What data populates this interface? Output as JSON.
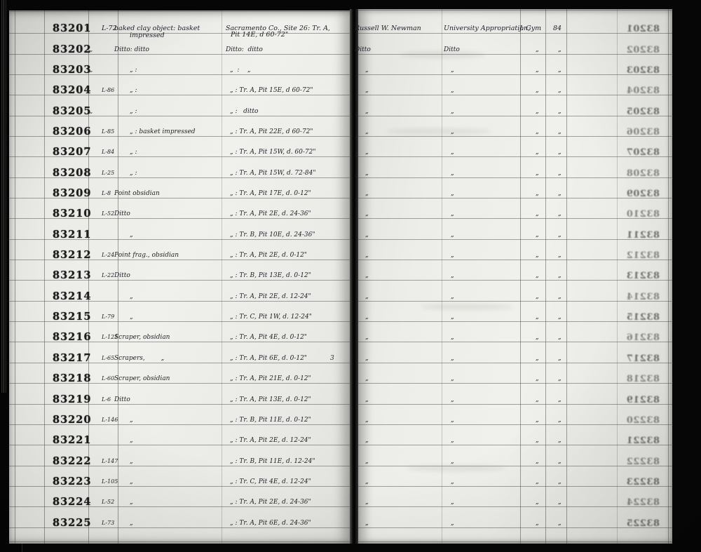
{
  "ledger": {
    "ditto_mark": "„",
    "rows": [
      {
        "no": "83201",
        "field_no": "L-72",
        "object": "baked clay object: basket",
        "object2": "impressed",
        "locality": "Sacramento Co., Site 26: Tr. A,",
        "locality2": "Pit 14E, d 60-72\"",
        "c1": "Russell W. Newman",
        "c2": "University Appropriation,",
        "c3": "J. Gym",
        "c4": "84"
      },
      {
        "no": "83202",
        "field_no": "„",
        "object": "Ditto: ditto",
        "locality": "Ditto:  ditto",
        "c1": "Ditto",
        "c2": "Ditto",
        "c3": "„",
        "c4": "„"
      },
      {
        "no": "83203",
        "field_no": "„",
        "object": "„ :",
        "locality": "„  :    „",
        "c1": "„",
        "c2": "„",
        "c3": "„",
        "c4": "„"
      },
      {
        "no": "83204",
        "field_no": "L-86",
        "object": "„ :",
        "locality": "„ : Tr. A, Pit 15E, d 60-72\"",
        "c1": "„",
        "c2": "„",
        "c3": "„",
        "c4": "„"
      },
      {
        "no": "83205",
        "field_no": "„",
        "object": "„ :",
        "locality": "„ :   ditto",
        "c1": "„",
        "c2": "„",
        "c3": "„",
        "c4": "„"
      },
      {
        "no": "83206",
        "field_no": "L-85",
        "object": "„ : basket impressed",
        "locality": "„ : Tr. A, Pit 22E, d 60-72\"",
        "c1": "„",
        "c2": "„",
        "c3": "„",
        "c4": "„"
      },
      {
        "no": "83207",
        "field_no": "L-84",
        "object": "„ :",
        "locality": "„ : Tr. A, Pit 15W, d. 60-72\"",
        "c1": "„",
        "c2": "„",
        "c3": "„",
        "c4": "„"
      },
      {
        "no": "83208",
        "field_no": "L-25",
        "object": "„ :",
        "locality": "„ : Tr. A, Pit 15W, d. 72-84\"",
        "c1": "„",
        "c2": "„",
        "c3": "„",
        "c4": "„"
      },
      {
        "no": "83209",
        "field_no": "L-8",
        "object": "Point obsidian",
        "locality": "„ : Tr. A, Pit 17E, d. 0-12\"",
        "c1": "„",
        "c2": "„",
        "c3": "„",
        "c4": "„"
      },
      {
        "no": "83210",
        "field_no": "L-52",
        "object": "Ditto",
        "locality": "„ : Tr. A, Pit 2E, d. 24-36\"",
        "c1": "„",
        "c2": "„",
        "c3": "„",
        "c4": "„"
      },
      {
        "no": "83211",
        "field_no": "",
        "object": "„",
        "locality": "„ : Tr. B, Pit 10E, d. 24-36\"",
        "c1": "„",
        "c2": "„",
        "c3": "„",
        "c4": "„"
      },
      {
        "no": "83212",
        "field_no": "L-24",
        "object": "Point frag., obsidian",
        "locality": "„ : Tr. A, Pit 2E, d. 0-12\"",
        "c1": "„",
        "c2": "„",
        "c3": "„",
        "c4": "„"
      },
      {
        "no": "83213",
        "field_no": "L-22",
        "object": "Ditto",
        "locality": "„ : Tr. B, Pit 13E, d. 0-12\"",
        "c1": "„",
        "c2": "„",
        "c3": "„",
        "c4": "„"
      },
      {
        "no": "83214",
        "field_no": "",
        "object": "„",
        "locality": "„ : Tr. A, Pit 2E, d. 12-24\"",
        "c1": "„",
        "c2": "„",
        "c3": "„",
        "c4": "„"
      },
      {
        "no": "83215",
        "field_no": "L-79",
        "object": "„",
        "locality": "„ : Tr. C, Pit 1W, d. 12-24\"",
        "c1": "„",
        "c2": "„",
        "c3": "„",
        "c4": "„"
      },
      {
        "no": "83216",
        "field_no": "L-121",
        "object": "Scraper, obsidian",
        "locality": "„ : Tr. A, Pit 4E, d. 0-12\"",
        "c1": "„",
        "c2": "„",
        "c3": "„",
        "c4": "„"
      },
      {
        "no": "83217",
        "field_no": "L-65",
        "object": "Scrapers,        „",
        "locality": "„ : Tr. A, Pit 6E, d. 0-12\"",
        "count": "3",
        "c1": "„",
        "c2": "„",
        "c3": "„",
        "c4": "„"
      },
      {
        "no": "83218",
        "field_no": "L-60",
        "object": "Scraper, obsidian",
        "locality": "„ : Tr. A, Pit 21E, d. 0-12\"",
        "c1": "„",
        "c2": "„",
        "c3": "„",
        "c4": "„"
      },
      {
        "no": "83219",
        "field_no": "L-6",
        "object": "Ditto",
        "locality": "„ : Tr. A, Pit 13E, d. 0-12\"",
        "c1": "„",
        "c2": "„",
        "c3": "„",
        "c4": "„"
      },
      {
        "no": "83220",
        "field_no": "L-146",
        "object": "„",
        "locality": "„ : Tr. B, Pit 11E, d. 0-12\"",
        "c1": "„",
        "c2": "„",
        "c3": "„",
        "c4": "„"
      },
      {
        "no": "83221",
        "field_no": "",
        "object": "„",
        "locality": "„ : Tr. A, Pit 2E, d. 12-24\"",
        "c1": "„",
        "c2": "„",
        "c3": "„",
        "c4": "„"
      },
      {
        "no": "83222",
        "field_no": "L-147",
        "object": "„",
        "locality": "„ : Tr. B, Pit 11E, d. 12-24\"",
        "c1": "„",
        "c2": "„",
        "c3": "„",
        "c4": "„"
      },
      {
        "no": "83223",
        "field_no": "L-105",
        "object": "„",
        "locality": "„ : Tr. C, Pit 4E, d. 12-24\"",
        "c1": "„",
        "c2": "„",
        "c3": "„",
        "c4": "„"
      },
      {
        "no": "83224",
        "field_no": "L-52",
        "object": "„",
        "locality": "„ : Tr. A, Pit 2E, d. 24-36\"",
        "c1": "„",
        "c2": "„",
        "c3": "„",
        "c4": "„"
      },
      {
        "no": "83225",
        "field_no": "L-73",
        "object": "„",
        "locality": "„ : Tr. A, Pit 6E, d. 24-36\"",
        "c1": "„",
        "c2": "„",
        "c3": "„",
        "c4": "„"
      }
    ]
  }
}
